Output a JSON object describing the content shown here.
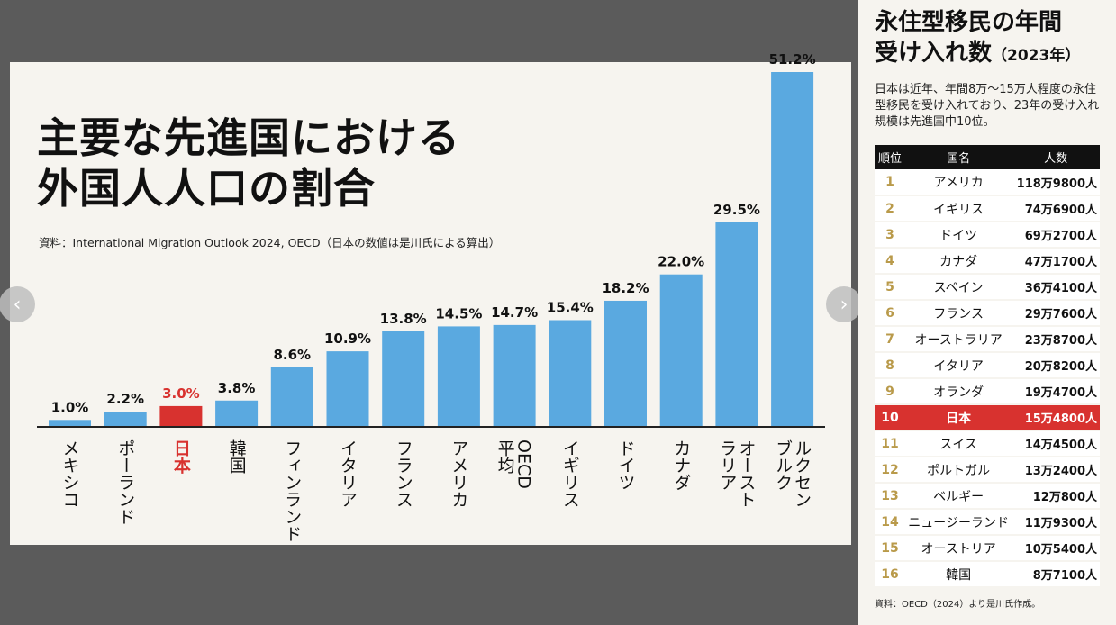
{
  "chart_data": {
    "type": "bar",
    "title": "主要な先進国における外国人人口の割合",
    "title_lines": [
      "主要な先進国における",
      "外国人人口の割合"
    ],
    "source": "資料：International Migration Outlook 2024, OECD（日本の数値は是川氏による算出）",
    "categories": [
      "メキシコ",
      "ポーランド",
      "日本",
      "韓国",
      "フィンランド",
      "イタリア",
      "フランス",
      "アメリカ",
      "OECD平均",
      "イギリス",
      "ドイツ",
      "カナダ",
      "オーストラリア",
      "ルクセンブルク"
    ],
    "category_columns": [
      [
        "メキシコ"
      ],
      [
        "ポーランド"
      ],
      [
        "日本"
      ],
      [
        "韓国"
      ],
      [
        "フィンランド"
      ],
      [
        "イタリア"
      ],
      [
        "フランス"
      ],
      [
        "アメリカ"
      ],
      [
        "OECD",
        "平均"
      ],
      [
        "イギリス"
      ],
      [
        "ドイツ"
      ],
      [
        "カナダ"
      ],
      [
        "オースト",
        "ラリア"
      ],
      [
        "ルクセン",
        "ブルク"
      ]
    ],
    "values": [
      1.0,
      2.2,
      3.0,
      3.8,
      8.6,
      10.9,
      13.8,
      14.5,
      14.7,
      15.4,
      18.2,
      22.0,
      29.5,
      51.2
    ],
    "value_labels": [
      "1.0%",
      "2.2%",
      "3.0%",
      "3.8%",
      "8.6%",
      "10.9%",
      "13.8%",
      "14.5%",
      "14.7%",
      "15.4%",
      "18.2%",
      "22.0%",
      "29.5%",
      "51.2%"
    ],
    "highlight_index": 2,
    "ylim": [
      0,
      51.2
    ],
    "xlabel": "",
    "ylabel": ""
  },
  "colors": {
    "bar": "#5aa9e0",
    "highlight": "#d8322f",
    "axis": "#222222",
    "table_header": "#111111",
    "rank_gold": "#b99a4a"
  },
  "nav": {
    "prev_icon": "‹",
    "next_icon": "›"
  },
  "table": {
    "title_line1": "永住型移民の年間",
    "title_line2": "受け入れ数",
    "title_year": "（2023年）",
    "description": "日本は近年、年間8万〜15万人程度の永住型移民を受け入れており、23年の受け入れ規模は先進国中10位。",
    "headers": [
      "順位",
      "国名",
      "人数"
    ],
    "rows": [
      {
        "rank": "1",
        "country": "アメリカ",
        "count": "118万9800人"
      },
      {
        "rank": "2",
        "country": "イギリス",
        "count": "74万6900人"
      },
      {
        "rank": "3",
        "country": "ドイツ",
        "count": "69万2700人"
      },
      {
        "rank": "4",
        "country": "カナダ",
        "count": "47万1700人"
      },
      {
        "rank": "5",
        "country": "スペイン",
        "count": "36万4100人"
      },
      {
        "rank": "6",
        "country": "フランス",
        "count": "29万7600人"
      },
      {
        "rank": "7",
        "country": "オーストラリア",
        "count": "23万8700人"
      },
      {
        "rank": "8",
        "country": "イタリア",
        "count": "20万8200人"
      },
      {
        "rank": "9",
        "country": "オランダ",
        "count": "19万4700人"
      },
      {
        "rank": "10",
        "country": "日本",
        "count": "15万4800人"
      },
      {
        "rank": "11",
        "country": "スイス",
        "count": "14万4500人"
      },
      {
        "rank": "12",
        "country": "ポルトガル",
        "count": "13万2400人"
      },
      {
        "rank": "13",
        "country": "ベルギー",
        "count": "12万800人"
      },
      {
        "rank": "14",
        "country": "ニュージーランド",
        "count": "11万9300人"
      },
      {
        "rank": "15",
        "country": "オーストリア",
        "count": "10万5400人"
      },
      {
        "rank": "16",
        "country": "韓国",
        "count": "8万7100人"
      }
    ],
    "highlight_rank": "10",
    "source": "資料：OECD（2024）より是川氏作成。"
  }
}
